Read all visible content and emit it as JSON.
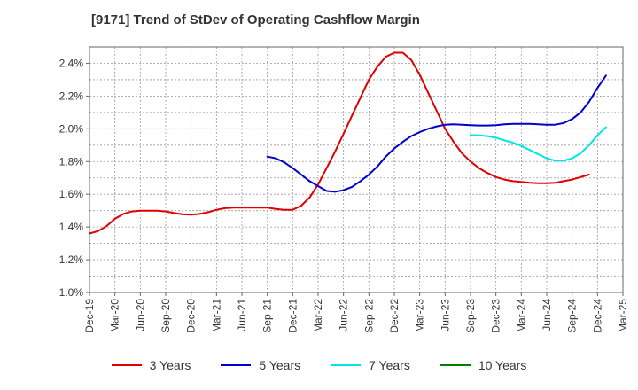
{
  "chart_data": {
    "type": "line",
    "title": "[9171]  Trend of StDev of Operating Cashflow Margin",
    "x_tick_labels": [
      "Dec-19",
      "Mar-20",
      "Jun-20",
      "Sep-20",
      "Dec-20",
      "Mar-21",
      "Jun-21",
      "Sep-21",
      "Dec-21",
      "Mar-22",
      "Jun-22",
      "Sep-22",
      "Dec-22",
      "Mar-23",
      "Jun-23",
      "Sep-23",
      "Dec-23",
      "Mar-24",
      "Jun-24",
      "Sep-24",
      "Dec-24",
      "Mar-25"
    ],
    "y_tick_labels": [
      "1.0%",
      "1.2%",
      "1.4%",
      "1.6%",
      "1.8%",
      "2.0%",
      "2.2%",
      "2.4%"
    ],
    "ylim": [
      1.0,
      2.5
    ],
    "ylabel": "",
    "xlabel": "",
    "grid": true,
    "legend_position": "bottom",
    "series": [
      {
        "name": "3 Years",
        "color": "#e00000",
        "points": [
          [
            "Dec-19",
            1.36
          ],
          [
            "Jan-20",
            1.375
          ],
          [
            "Feb-20",
            1.405
          ],
          [
            "Mar-20",
            1.45
          ],
          [
            "Apr-20",
            1.48
          ],
          [
            "May-20",
            1.495
          ],
          [
            "Jun-20",
            1.5
          ],
          [
            "Jul-20",
            1.5
          ],
          [
            "Aug-20",
            1.5
          ],
          [
            "Sep-20",
            1.495
          ],
          [
            "Oct-20",
            1.485
          ],
          [
            "Nov-20",
            1.477
          ],
          [
            "Dec-20",
            1.475
          ],
          [
            "Jan-21",
            1.48
          ],
          [
            "Feb-21",
            1.49
          ],
          [
            "Mar-21",
            1.505
          ],
          [
            "Apr-21",
            1.515
          ],
          [
            "May-21",
            1.518
          ],
          [
            "Jun-21",
            1.518
          ],
          [
            "Jul-21",
            1.518
          ],
          [
            "Aug-21",
            1.518
          ],
          [
            "Sep-21",
            1.518
          ],
          [
            "Oct-21",
            1.51
          ],
          [
            "Nov-21",
            1.505
          ],
          [
            "Dec-21",
            1.505
          ],
          [
            "Jan-22",
            1.53
          ],
          [
            "Feb-22",
            1.58
          ],
          [
            "Mar-22",
            1.66
          ],
          [
            "Apr-22",
            1.76
          ],
          [
            "May-22",
            1.86
          ],
          [
            "Jun-22",
            1.97
          ],
          [
            "Jul-22",
            2.08
          ],
          [
            "Aug-22",
            2.19
          ],
          [
            "Sep-22",
            2.3
          ],
          [
            "Oct-22",
            2.38
          ],
          [
            "Nov-22",
            2.44
          ],
          [
            "Dec-22",
            2.465
          ],
          [
            "Jan-23",
            2.465
          ],
          [
            "Feb-23",
            2.42
          ],
          [
            "Mar-23",
            2.33
          ],
          [
            "Apr-23",
            2.22
          ],
          [
            "May-23",
            2.11
          ],
          [
            "Jun-23",
            2.0
          ],
          [
            "Jul-23",
            1.92
          ],
          [
            "Aug-23",
            1.85
          ],
          [
            "Sep-23",
            1.8
          ],
          [
            "Oct-23",
            1.76
          ],
          [
            "Nov-23",
            1.73
          ],
          [
            "Dec-23",
            1.705
          ],
          [
            "Jan-24",
            1.69
          ],
          [
            "Feb-24",
            1.68
          ],
          [
            "Mar-24",
            1.675
          ],
          [
            "Apr-24",
            1.67
          ],
          [
            "May-24",
            1.667
          ],
          [
            "Jun-24",
            1.667
          ],
          [
            "Jul-24",
            1.67
          ],
          [
            "Aug-24",
            1.68
          ],
          [
            "Sep-24",
            1.69
          ],
          [
            "Oct-24",
            1.705
          ],
          [
            "Nov-24",
            1.72
          ]
        ]
      },
      {
        "name": "5 Years",
        "color": "#0000cc",
        "points": [
          [
            "Sep-21",
            1.83
          ],
          [
            "Oct-21",
            1.82
          ],
          [
            "Nov-21",
            1.795
          ],
          [
            "Dec-21",
            1.76
          ],
          [
            "Jan-22",
            1.72
          ],
          [
            "Feb-22",
            1.68
          ],
          [
            "Mar-22",
            1.65
          ],
          [
            "Apr-22",
            1.62
          ],
          [
            "May-22",
            1.615
          ],
          [
            "Jun-22",
            1.625
          ],
          [
            "Jul-22",
            1.645
          ],
          [
            "Aug-22",
            1.68
          ],
          [
            "Sep-22",
            1.72
          ],
          [
            "Oct-22",
            1.77
          ],
          [
            "Nov-22",
            1.83
          ],
          [
            "Dec-22",
            1.88
          ],
          [
            "Jan-23",
            1.92
          ],
          [
            "Feb-23",
            1.955
          ],
          [
            "Mar-23",
            1.98
          ],
          [
            "Apr-23",
            2.0
          ],
          [
            "May-23",
            2.015
          ],
          [
            "Jun-23",
            2.025
          ],
          [
            "Jul-23",
            2.028
          ],
          [
            "Aug-23",
            2.025
          ],
          [
            "Sep-23",
            2.022
          ],
          [
            "Oct-23",
            2.02
          ],
          [
            "Nov-23",
            2.02
          ],
          [
            "Dec-23",
            2.022
          ],
          [
            "Jan-24",
            2.027
          ],
          [
            "Feb-24",
            2.03
          ],
          [
            "Mar-24",
            2.03
          ],
          [
            "Apr-24",
            2.03
          ],
          [
            "May-24",
            2.028
          ],
          [
            "Jun-24",
            2.025
          ],
          [
            "Jul-24",
            2.025
          ],
          [
            "Aug-24",
            2.035
          ],
          [
            "Sep-24",
            2.06
          ],
          [
            "Oct-24",
            2.1
          ],
          [
            "Nov-24",
            2.165
          ],
          [
            "Dec-24",
            2.25
          ],
          [
            "Jan-25",
            2.325
          ]
        ]
      },
      {
        "name": "7 Years",
        "color": "#00e6e6",
        "points": [
          [
            "Sep-23",
            1.962
          ],
          [
            "Oct-23",
            1.96
          ],
          [
            "Nov-23",
            1.955
          ],
          [
            "Dec-23",
            1.945
          ],
          [
            "Jan-24",
            1.93
          ],
          [
            "Feb-24",
            1.915
          ],
          [
            "Mar-24",
            1.895
          ],
          [
            "Apr-24",
            1.87
          ],
          [
            "May-24",
            1.845
          ],
          [
            "Jun-24",
            1.82
          ],
          [
            "Jul-24",
            1.805
          ],
          [
            "Aug-24",
            1.805
          ],
          [
            "Sep-24",
            1.82
          ],
          [
            "Oct-24",
            1.85
          ],
          [
            "Nov-24",
            1.9
          ],
          [
            "Dec-24",
            1.96
          ],
          [
            "Jan-25",
            2.01
          ]
        ]
      },
      {
        "name": "10 Years",
        "color": "#008000",
        "points": []
      }
    ]
  }
}
